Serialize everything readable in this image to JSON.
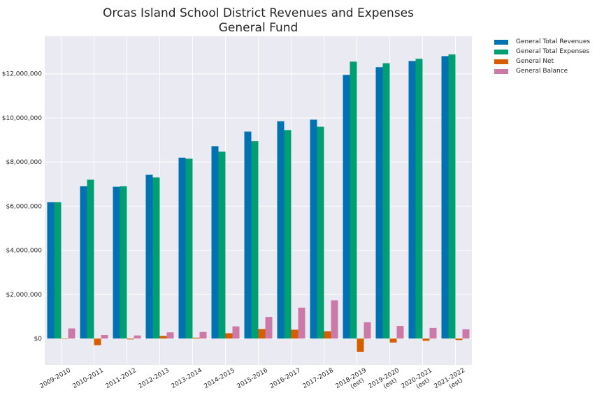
{
  "chart_data": {
    "type": "bar",
    "title": [
      "Orcas Island School District Revenues and Expenses",
      "General Fund"
    ],
    "xlabel": "",
    "ylabel": "",
    "categories": [
      [
        "2009-2010"
      ],
      [
        "2010-2011"
      ],
      [
        "2011-2012"
      ],
      [
        "2012-2013"
      ],
      [
        "2013-2014"
      ],
      [
        "2014-2015"
      ],
      [
        "2015-2016"
      ],
      [
        "2016-2017"
      ],
      [
        "2017-2018"
      ],
      [
        "2018-2019",
        "(est)"
      ],
      [
        "2019-2020",
        "(est)"
      ],
      [
        "2020-2021",
        "(est)"
      ],
      [
        "2021-2022",
        "(est)"
      ]
    ],
    "ylim": [
      -1200000,
      13700000
    ],
    "yticks": [
      0,
      2000000,
      4000000,
      6000000,
      8000000,
      10000000,
      12000000
    ],
    "ytick_labels": [
      "$0",
      "$2,000,000",
      "$4,000,000",
      "$6,000,000",
      "$8,000,000",
      "$10,000,000",
      "$12,000,000"
    ],
    "grid": true,
    "legend_position": "outside-top-right",
    "background": "#eaeaf2",
    "series": [
      {
        "name": "General Total Revenues",
        "color": "#0072b2",
        "values": [
          6180000,
          6900000,
          6880000,
          7420000,
          8200000,
          8720000,
          9380000,
          9850000,
          9920000,
          11950000,
          12300000,
          12580000,
          12800000
        ]
      },
      {
        "name": "General Total Expenses",
        "color": "#009e73",
        "values": [
          6180000,
          7200000,
          6900000,
          7300000,
          8150000,
          8470000,
          8950000,
          9450000,
          9600000,
          12550000,
          12480000,
          12680000,
          12880000
        ]
      },
      {
        "name": "General Net",
        "color": "#d55e00",
        "values": [
          0,
          -300000,
          -40000,
          120000,
          40000,
          240000,
          430000,
          400000,
          330000,
          -600000,
          -180000,
          -100000,
          -70000
        ]
      },
      {
        "name": "General Balance",
        "color": "#cc79a7",
        "values": [
          460000,
          160000,
          140000,
          280000,
          300000,
          550000,
          980000,
          1400000,
          1730000,
          740000,
          570000,
          480000,
          420000
        ]
      }
    ]
  }
}
